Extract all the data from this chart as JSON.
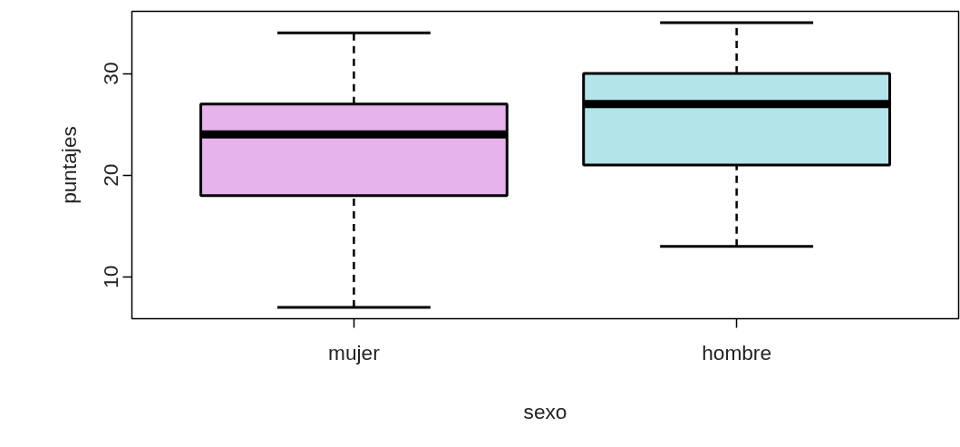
{
  "chart_data": {
    "type": "box",
    "xlabel": "sexo",
    "ylabel": "puntajes",
    "categories": [
      "mujer",
      "hombre"
    ],
    "colors": [
      "#e6b3ec",
      "#b2e4ea"
    ],
    "boxes": [
      {
        "low": 7,
        "q1": 18,
        "median": 24,
        "q3": 27,
        "high": 34
      },
      {
        "low": 13,
        "q1": 21,
        "median": 27,
        "q3": 30,
        "high": 35
      }
    ],
    "ylim": [
      5.88,
      36.12
    ],
    "yticks": [
      10,
      20,
      30
    ]
  }
}
